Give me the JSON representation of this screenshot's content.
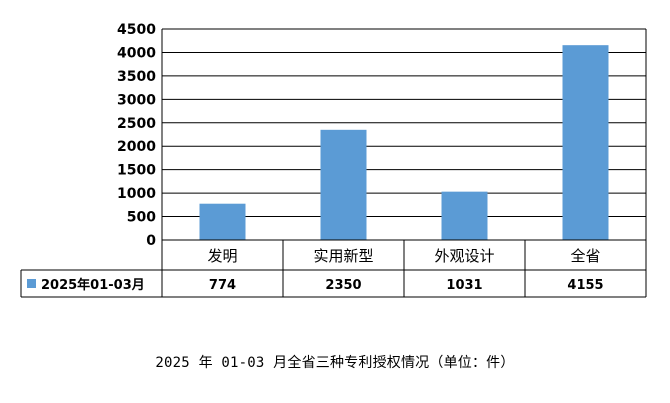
{
  "caption": "2025 年 01-03 月全省三种专利授权情况（单位：件）",
  "chart_data": {
    "type": "bar",
    "categories": [
      "发明",
      "实用新型",
      "外观设计",
      "全省"
    ],
    "series": [
      {
        "name": "2025年01-03月",
        "values": [
          774,
          2350,
          1031,
          4155
        ],
        "color": "#5b9bd5"
      }
    ],
    "ylim": [
      0,
      4500
    ],
    "yticks": [
      0,
      500,
      1000,
      1500,
      2000,
      2500,
      3000,
      3500,
      4000,
      4500
    ],
    "grid": true,
    "data_table": true,
    "legend": "in data table"
  }
}
